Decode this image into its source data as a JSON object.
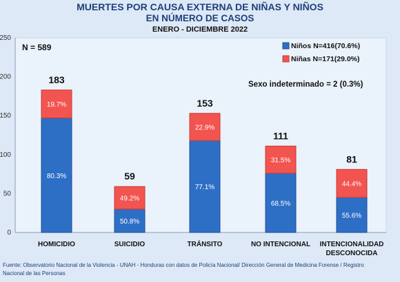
{
  "header": {
    "title": "MUERTES POR CAUSA EXTERNA DE NIÑAS Y NIÑOS",
    "subtitle": "EN NÚMERO DE CASOS",
    "period": "ENERO - DICIEMBRE 2022"
  },
  "source": "Fuente: Observatorio Nacional de la Violencia - UNAH - Honduras con datos de Policía Nacional/ Dirección General de Medicina Forense / Registro Nacional de las Personas",
  "colors": {
    "ninos": "#2e6fc6",
    "ninas": "#f25450",
    "background": "#dde9f7",
    "plot_background": "#eaf2fb"
  },
  "chart_data": {
    "type": "bar",
    "stacked": true,
    "categories": [
      [
        "HOMICIDIO"
      ],
      [
        "SUICIDIO"
      ],
      [
        "TRÁNSITO"
      ],
      [
        "NO INTENCIONAL"
      ],
      [
        "INTENCIONALIDAD",
        "DESCONOCIDA"
      ]
    ],
    "totals": [
      183,
      59,
      153,
      111,
      81
    ],
    "series": [
      {
        "name": "Niños N=416(70.6%)",
        "values": [
          147,
          30,
          118,
          76,
          45
        ],
        "percent_labels": [
          "80.3%",
          "50.8%",
          "77.1%",
          "68.5%",
          "55.6%"
        ]
      },
      {
        "name": "Niñas N=171(29.0%)",
        "values": [
          36,
          29,
          35,
          35,
          36
        ],
        "percent_labels": [
          "19.7%",
          "49.2%",
          "22.9%",
          "31.5%",
          "44.4%"
        ]
      }
    ],
    "ylim": [
      0,
      250
    ],
    "yticks": [
      0,
      50,
      100,
      150,
      200,
      250
    ],
    "annotations": {
      "n_total": "N = 589",
      "sexo_indeterminado": "Sexo indeterminado = 2 (0.3%)"
    },
    "legend_position": "top-right",
    "grid": false
  }
}
